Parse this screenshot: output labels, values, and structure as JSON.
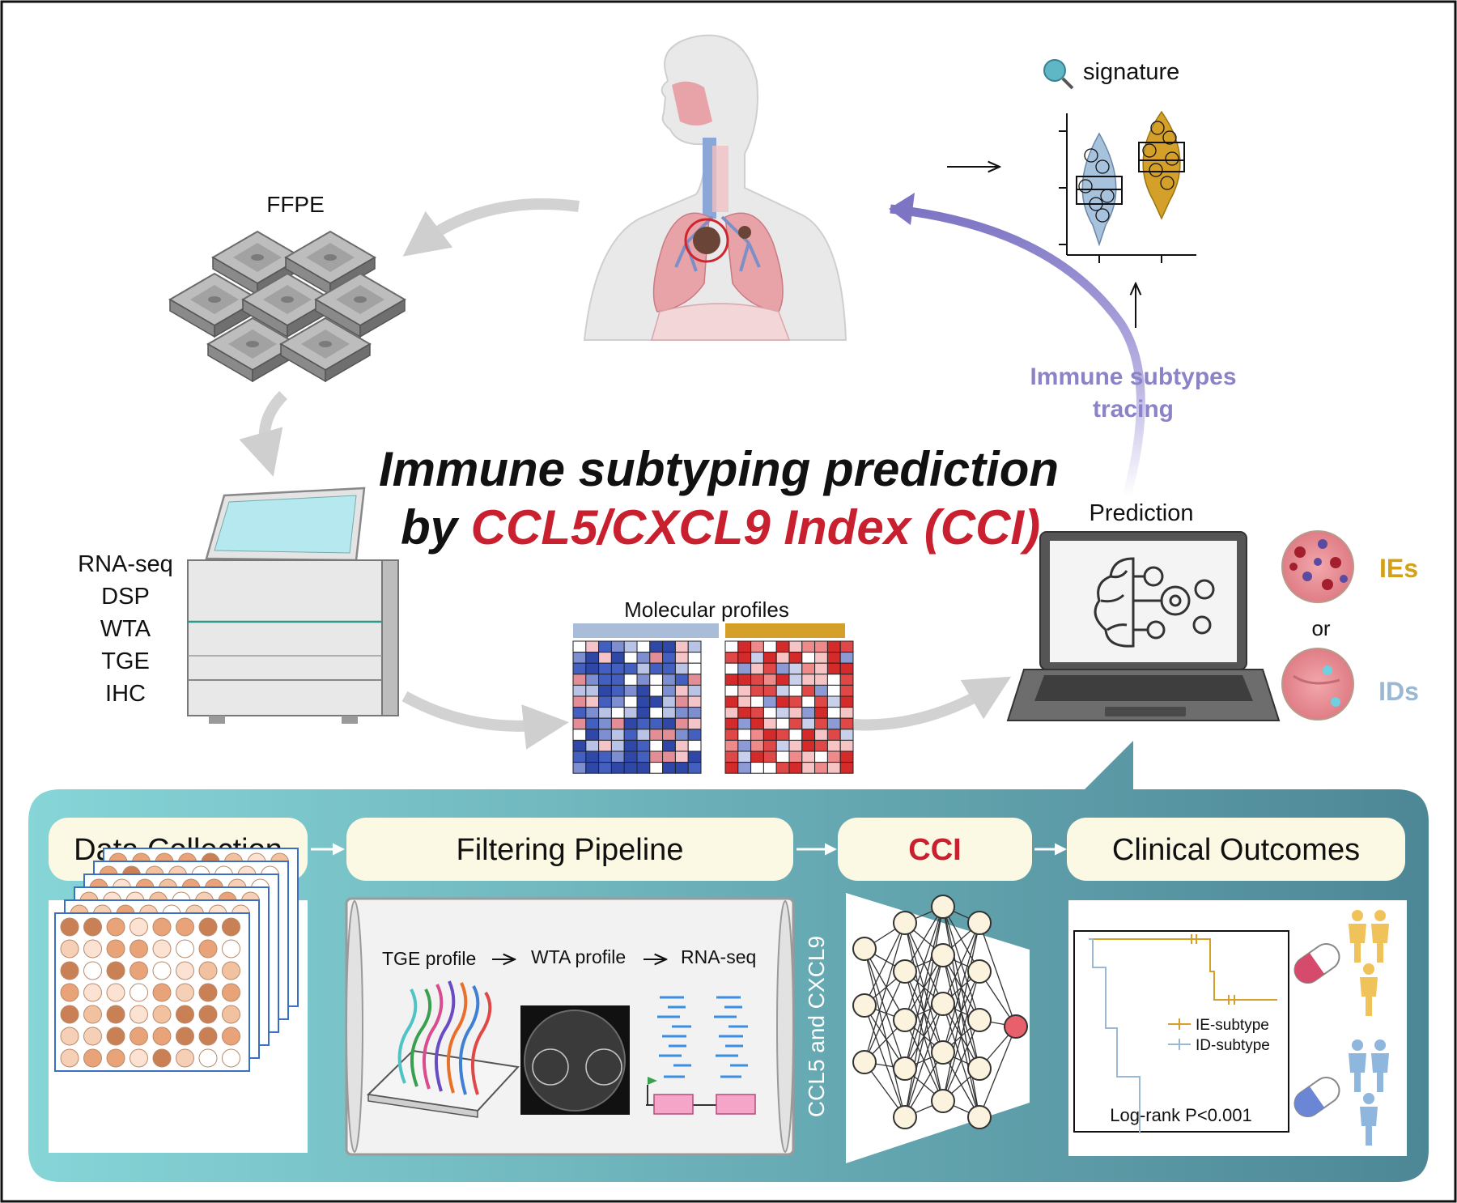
{
  "title": {
    "line1": "Immune subtyping prediction",
    "line2_prefix": "by ",
    "line2_highlight": "CCL5/CXCL9 Index (CCI)"
  },
  "ffpe_label": "FFPE",
  "assays": [
    "RNA-seq",
    "DSP",
    "WTA",
    "TGE",
    "IHC"
  ],
  "molecular_profiles_label": "Molecular profiles",
  "prediction_label": "Prediction",
  "signature_label": "signature",
  "tracing_label": {
    "line1": "Immune subtypes",
    "line2": "tracing"
  },
  "subtypes": {
    "ies": "IEs",
    "or": "or",
    "ids": "IDs"
  },
  "pipeline": {
    "steps": [
      "Data Collection",
      "Filtering Pipeline",
      "CCI",
      "Clinical Outcomes"
    ],
    "filter_steps": [
      "TGE profile",
      "WTA profile",
      "RNA-seq"
    ],
    "vertical_label": "CCL5 and CXCL9",
    "km_legend": [
      "IE-subtype",
      "ID-subtype"
    ],
    "km_pvalue": "Log-rank P<0.001"
  },
  "colors": {
    "highlight_red": "#c8202e",
    "gold": "#d4a017",
    "steel_blue": "#9ab8d4",
    "purple_arrow": "#8b83c8",
    "teal_start": "#7fd4d6",
    "teal_end": "#4a8898"
  },
  "icons": [
    "human-anatomy-icon",
    "ffpe-block-icon",
    "sequencer-icon",
    "laptop-icon",
    "brain-gears-icon",
    "magnifier-icon",
    "pill-icon",
    "person-icon",
    "neural-network-icon"
  ]
}
